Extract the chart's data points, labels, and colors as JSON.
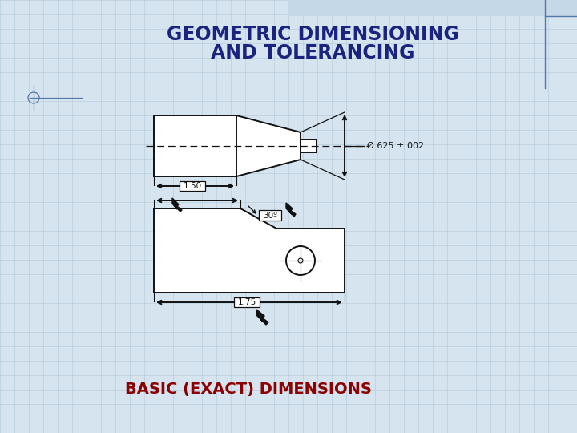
{
  "title_line1": "GEOMETRIC DIMENSIONING",
  "title_line2": "AND TOLERANCING",
  "title_color": "#1a237e",
  "title_fontsize": 17,
  "subtitle": "BASIC (EXACT) DIMENSIONS",
  "subtitle_color": "#8b0000",
  "subtitle_fontsize": 14,
  "background_color": "#d6e4ef",
  "drawing_color": "#111111",
  "dim_text_1": "Ø.625 ±.002",
  "dim_text_2": "1.50",
  "dim_text_3": "30º",
  "dim_text_4": "1.75",
  "grid_color": "#b8cedd",
  "blue_line": "#5577aa",
  "header_bar": "#b8cedd"
}
